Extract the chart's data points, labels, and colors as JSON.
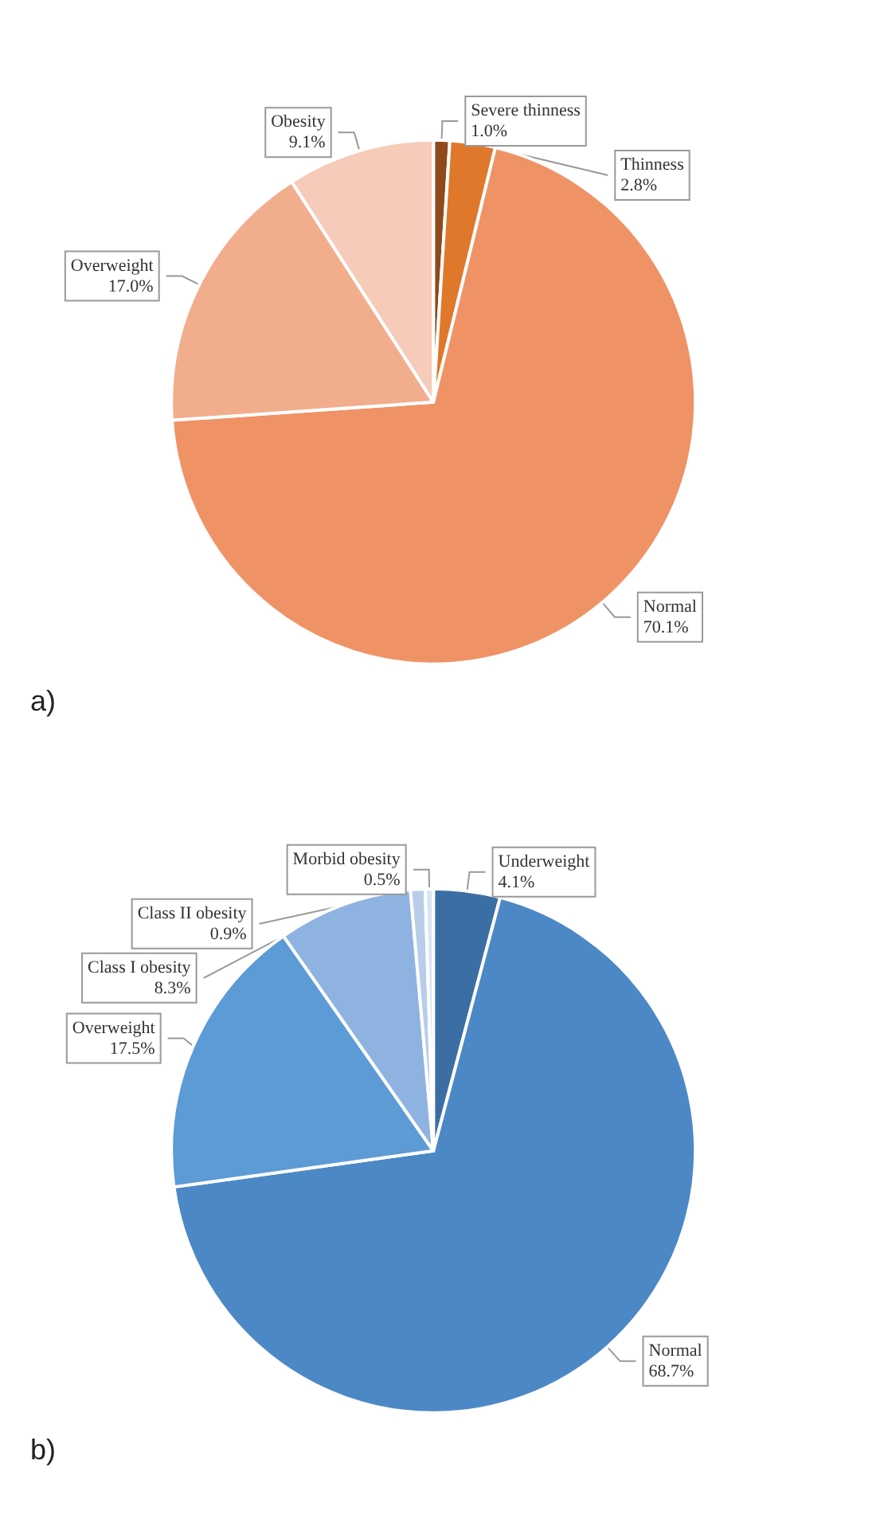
{
  "chart_data": [
    {
      "type": "pie",
      "title": "a)",
      "categories": [
        "Severe thinness",
        "Thinness",
        "Normal",
        "Overweight",
        "Obesity"
      ],
      "values": [
        1.0,
        2.8,
        70.1,
        17.0,
        9.1
      ],
      "value_labels": [
        "1.0%",
        "2.8%",
        "70.1%",
        "17.0%",
        "9.1%"
      ],
      "colors": [
        "#8e4a1c",
        "#e0782c",
        "#ef9366",
        "#f2ad8d",
        "#f6cbb9"
      ],
      "legend": false
    },
    {
      "type": "pie",
      "title": "b)",
      "categories": [
        "Underweight",
        "Normal",
        "Overweight",
        "Class I obesity",
        "Class II obesity",
        "Morbid obesity"
      ],
      "values": [
        4.1,
        68.7,
        17.5,
        8.3,
        0.9,
        0.5
      ],
      "value_labels": [
        "4.1%",
        "68.7%",
        "17.5%",
        "8.3%",
        "0.9%",
        "0.5%"
      ],
      "colors": [
        "#3b6ea5",
        "#4d88c6",
        "#5d9bd6",
        "#8fb3e0",
        "#b7cdea",
        "#d8e5f4"
      ],
      "legend": false
    }
  ]
}
